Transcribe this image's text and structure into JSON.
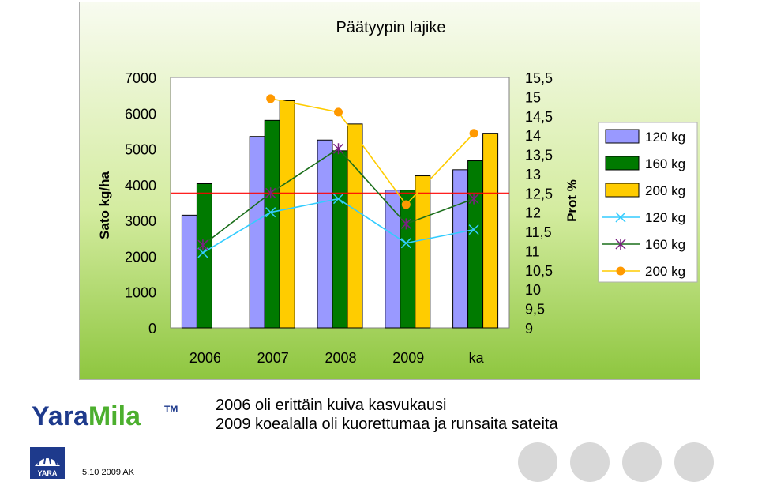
{
  "chart_data": {
    "type": "bar",
    "title": "Päätyypin lajike",
    "categories": [
      "2006",
      "2007",
      "2008",
      "2009",
      "ka"
    ],
    "ylabel": "Sato kg/ha",
    "y2label": "Prot %",
    "ylim": [
      0,
      7000
    ],
    "y2lim": [
      9,
      15.5
    ],
    "yticks": [
      "0",
      "1000",
      "2000",
      "3000",
      "4000",
      "5000",
      "6000",
      "7000"
    ],
    "y2ticks": [
      "9",
      "9,5",
      "10",
      "10,5",
      "11",
      "11,5",
      "12",
      "12,5",
      "13",
      "13,5",
      "14",
      "14,5",
      "15",
      "15,5"
    ],
    "reference_line": 12.5,
    "series": [
      {
        "name": "120 kg",
        "kind": "bar",
        "axis": "left",
        "color": "#9999ff",
        "values": [
          3150,
          5350,
          5250,
          3850,
          4420
        ]
      },
      {
        "name": "160 kg",
        "kind": "bar",
        "axis": "left",
        "color": "#007a00",
        "values": [
          4030,
          5800,
          4950,
          3850,
          4670
        ]
      },
      {
        "name": "200 kg",
        "kind": "bar",
        "axis": "left",
        "color": "#ffcc00",
        "values": [
          null,
          6350,
          5700,
          4250,
          5440
        ]
      },
      {
        "name": "120 kg",
        "kind": "line",
        "axis": "right",
        "color": "#33ccff",
        "marker": "x",
        "values": [
          10.95,
          12.0,
          12.35,
          11.2,
          11.55
        ]
      },
      {
        "name": "160 kg",
        "kind": "line",
        "axis": "right",
        "color": "#1a6e1a",
        "marker": "star",
        "markerColor": "#7a2080",
        "values": [
          11.15,
          12.5,
          13.65,
          11.7,
          12.35
        ]
      },
      {
        "name": "200 kg",
        "kind": "line",
        "axis": "right",
        "color": "#ffcc00",
        "marker": "dot",
        "markerColor": "#ff9900",
        "values": [
          null,
          14.95,
          14.6,
          12.2,
          14.05
        ]
      }
    ],
    "legend": "right"
  },
  "notes": {
    "line1": "2006 oli erittäin kuiva kasvukausi",
    "line2": "2009 koealalla oli kuorettumaa ja runsaita sateita"
  },
  "footer": {
    "date": "5.10 2009 AK"
  },
  "brand": {
    "logo_text": "YaraMila",
    "badge_text": "YARA",
    "colors": {
      "navy": "#1e3a8c",
      "green": "#4caf2e"
    }
  }
}
